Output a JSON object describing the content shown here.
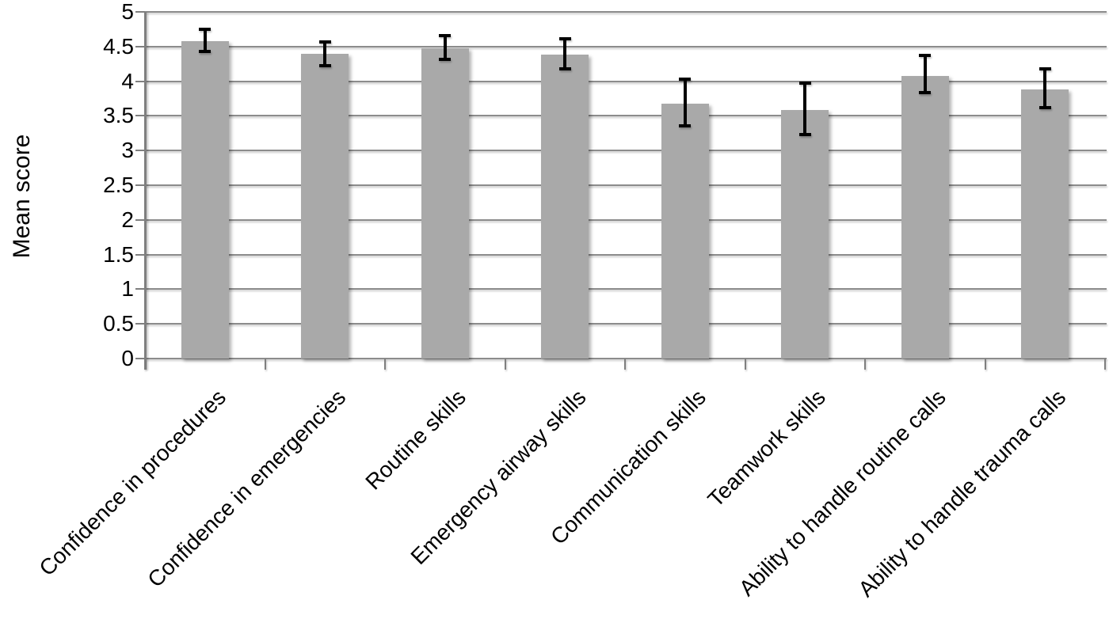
{
  "chart_data": {
    "type": "bar",
    "title": "",
    "xlabel": "",
    "ylabel": "Mean score",
    "ylim": [
      0,
      5
    ],
    "ytick_step": 0.5,
    "ytick_labels": [
      "0",
      "0.5",
      "1",
      "1.5",
      "2",
      "2.5",
      "3",
      "3.5",
      "4",
      "4.5",
      "5"
    ],
    "grid": true,
    "legend": false,
    "categories": [
      "Confidence in procedures",
      "Confidence in emergencies",
      "Routine skills",
      "Emergency airway skills",
      "Communication skills",
      "Teamwork skills",
      "Ability to handle routine calls",
      "Ability to handle trauma calls"
    ],
    "series": [
      {
        "name": "Mean score",
        "values": [
          4.58,
          4.39,
          4.48,
          4.38,
          3.68,
          3.58,
          4.08,
          3.88
        ],
        "error_low": [
          4.43,
          4.22,
          4.31,
          4.18,
          3.36,
          3.23,
          3.83,
          3.62
        ],
        "error_high": [
          4.75,
          4.57,
          4.66,
          4.61,
          4.03,
          3.97,
          4.37,
          4.18
        ]
      }
    ],
    "colors": {
      "bar_fill": "#a9a9a9",
      "error_bar": "#000000",
      "gridline": "#8c8c8c",
      "axis": "#7f7f7f",
      "text": "#000000",
      "background": "#ffffff"
    }
  }
}
